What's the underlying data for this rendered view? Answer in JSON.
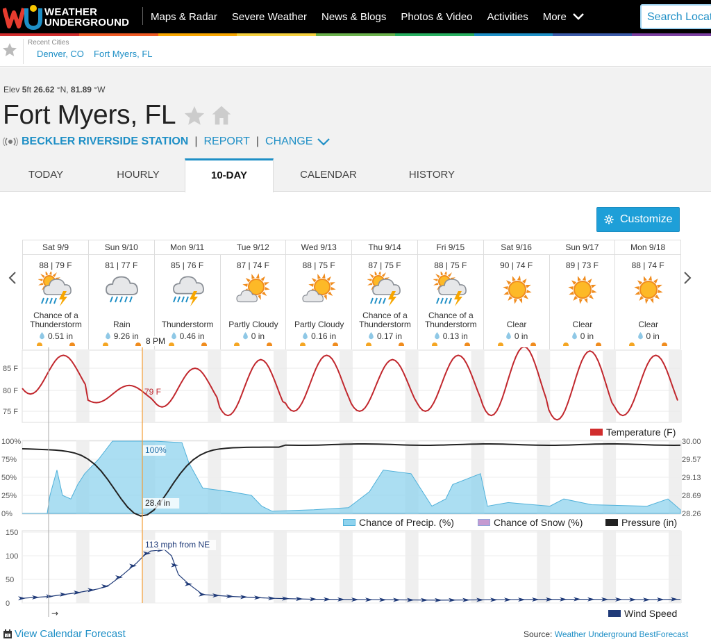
{
  "nav": {
    "logo_line1": "WEATHER",
    "logo_line2": "UNDERGROUND",
    "items": [
      "Maps & Radar",
      "Severe Weather",
      "News & Blogs",
      "Photos & Video",
      "Activities"
    ],
    "more_label": "More",
    "search_placeholder": "Search Locations",
    "rainbow_colors": [
      "#d12d2d",
      "#ee5a24",
      "#f7a600",
      "#f4d03f",
      "#6ab04c",
      "#27ae60",
      "#1e8fc6",
      "#3b5aa8",
      "#7a3fa0"
    ]
  },
  "recent": {
    "label": "Recent Cities",
    "cities": [
      "Denver, CO",
      "Fort Myers, FL"
    ]
  },
  "location": {
    "elev_prefix": "Elev",
    "elev_value": "5",
    "elev_unit": "ft",
    "lat": "26.62",
    "lat_dir": "°N,",
    "lon": "81.89",
    "lon_dir": "°W",
    "city": "Fort Myers, FL",
    "station": "BECKLER RIVERSIDE STATION",
    "report": "REPORT",
    "change": "CHANGE"
  },
  "tabs": [
    "TODAY",
    "HOURLY",
    "10-DAY",
    "CALENDAR",
    "HISTORY"
  ],
  "active_tab": "10-DAY",
  "customize_label": "Customize",
  "forecast": [
    {
      "day": "Sat 9/9",
      "temps": "88 | 79 F",
      "cond": "Chance of a Thunderstorm",
      "icon": "thunderstorm-partly-icon",
      "precip": "0.51 in"
    },
    {
      "day": "Sun 9/10",
      "temps": "81 | 77 F",
      "cond": "Rain",
      "icon": "rain-icon",
      "precip": "9.26 in"
    },
    {
      "day": "Mon 9/11",
      "temps": "85 | 76 F",
      "cond": "Thunderstorm",
      "icon": "thunderstorm-icon",
      "precip": "0.46 in"
    },
    {
      "day": "Tue 9/12",
      "temps": "87 | 74 F",
      "cond": "Partly Cloudy",
      "icon": "partly-cloudy-icon",
      "precip": "0 in"
    },
    {
      "day": "Wed 9/13",
      "temps": "88 | 75 F",
      "cond": "Partly Cloudy",
      "icon": "partly-cloudy-icon",
      "precip": "0.16 in"
    },
    {
      "day": "Thu 9/14",
      "temps": "87 | 75 F",
      "cond": "Chance of a Thunderstorm",
      "icon": "thunderstorm-partly-icon",
      "precip": "0.17 in"
    },
    {
      "day": "Fri 9/15",
      "temps": "88 | 75 F",
      "cond": "Chance of a Thunderstorm",
      "icon": "thunderstorm-partly-icon",
      "precip": "0.13 in"
    },
    {
      "day": "Sat 9/16",
      "temps": "90 | 74 F",
      "cond": "Clear",
      "icon": "sun-icon",
      "precip": "0 in"
    },
    {
      "day": "Sun 9/17",
      "temps": "89 | 73 F",
      "cond": "Clear",
      "icon": "sun-icon",
      "precip": "0 in"
    },
    {
      "day": "Mon 9/18",
      "temps": "88 | 74 F",
      "cond": "Clear",
      "icon": "sun-icon",
      "precip": "0 in"
    }
  ],
  "chart": {
    "cursor_label": "8 PM",
    "temp_marker": "79 F",
    "precip_marker": "100%",
    "pressure_marker": "28.4 in",
    "wind_marker": "113 mph from NE",
    "temp_ticks": [
      "85 F",
      "80 F",
      "75 F"
    ],
    "pct_ticks": [
      "100%",
      "75%",
      "50%",
      "25%",
      "0%"
    ],
    "pressure_ticks": [
      "30.00",
      "29.57",
      "29.13",
      "28.69",
      "28.26"
    ],
    "wind_ticks": [
      "150",
      "100",
      "50",
      "0"
    ],
    "legend_temp": "Temperature (F)",
    "legend_precip": "Chance of Precip. (%)",
    "legend_snow": "Chance of Snow (%)",
    "legend_pressure": "Pressure (in)",
    "legend_wind": "Wind Speed",
    "temp_color": "#c1272d",
    "precip_color": "#8fd3ee",
    "snow_color": "#c59ad1",
    "pressure_color": "#222222",
    "wind_color": "#1f3a78",
    "cursor_color": "#f39c34"
  },
  "footer": {
    "calendar_link": "View Calendar Forecast",
    "source_label": "Source:",
    "source_link": "Weather Underground BestForecast"
  }
}
